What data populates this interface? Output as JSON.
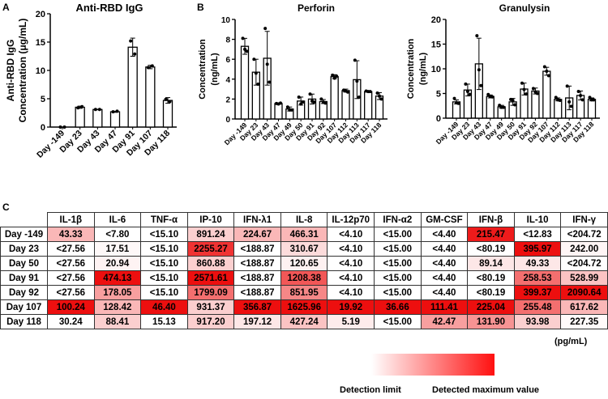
{
  "panels": {
    "a": "A",
    "b": "B",
    "c": "C"
  },
  "chart_data": [
    {
      "type": "bar",
      "title": "Anti-RBD IgG",
      "ylabel": [
        "Anti-RBD IgG",
        "Concentration (μg/mL)"
      ],
      "xlabel": "",
      "ylim": [
        0,
        20
      ],
      "yticks": [
        0,
        5,
        10,
        15,
        20
      ],
      "categories": [
        "Day -149",
        "Day 23",
        "Day 43",
        "Day 47",
        "Day 91",
        "Day 107",
        "Day 118"
      ],
      "values": [
        0,
        3.5,
        3.1,
        2.7,
        14.1,
        10.6,
        4.7
      ],
      "errors": [
        0,
        0.2,
        0.05,
        0.1,
        1.6,
        0.3,
        0.5
      ],
      "points": [
        [
          0,
          0
        ],
        [
          3.4,
          3.6
        ],
        [
          3.1,
          3.1
        ],
        [
          2.7,
          2.8
        ],
        [
          15.2,
          12.9
        ],
        [
          10.5,
          10.8
        ],
        [
          4.9,
          4.5
        ]
      ]
    },
    {
      "type": "bar",
      "title": "Perforin",
      "ylabel": [
        "Concentration",
        "(ng/mL)"
      ],
      "xlabel": "",
      "ylim": [
        0,
        10
      ],
      "yticks": [
        0,
        2,
        4,
        6,
        8,
        10
      ],
      "categories": [
        "Day -149",
        "Day 23",
        "Day 43",
        "Day 47",
        "Day 49",
        "Day 50",
        "Day 91",
        "Day 92",
        "Day 107",
        "Day 112",
        "Day 113",
        "Day 117",
        "Day 118"
      ],
      "values": [
        7.3,
        4.7,
        6.1,
        1.55,
        1.0,
        1.8,
        2.0,
        1.75,
        4.25,
        2.85,
        3.95,
        2.75,
        2.3
      ],
      "errors": [
        0.8,
        1.3,
        2.7,
        0.05,
        0.2,
        0.4,
        0.5,
        0.2,
        0.2,
        0.15,
        1.9,
        0.05,
        0.35
      ],
      "points": [
        [
          8.1,
          7.0,
          6.8
        ],
        [
          6.0,
          4.6,
          3.5
        ],
        [
          9.1,
          5.5,
          3.7
        ],
        [
          1.55,
          1.5,
          1.6
        ],
        [
          1.2,
          0.9,
          0.9
        ],
        [
          2.2,
          1.5,
          1.7
        ],
        [
          2.5,
          1.8,
          1.7
        ],
        [
          2.0,
          1.7,
          1.6
        ],
        [
          4.4,
          4.1,
          4.3
        ],
        [
          2.9,
          2.8,
          2.7
        ],
        [
          5.9,
          3.8,
          2.2
        ],
        [
          2.8,
          2.75,
          2.75
        ],
        [
          2.6,
          2.3,
          2.0
        ]
      ]
    },
    {
      "type": "bar",
      "title": "Granulysin",
      "ylabel": [
        "Concentration",
        "(ng/mL)"
      ],
      "xlabel": "",
      "ylim": [
        0,
        20
      ],
      "yticks": [
        0,
        5,
        10,
        15,
        20
      ],
      "categories": [
        "Day -149",
        "Day 23",
        "Day 43",
        "Day 47",
        "Day 49",
        "Day 50",
        "Day 91",
        "Day 92",
        "Day 107",
        "Day 112",
        "Day 113",
        "Day 117",
        "Day 118"
      ],
      "values": [
        3.3,
        5.7,
        11.0,
        4.4,
        2.3,
        3.3,
        5.9,
        5.5,
        9.5,
        3.8,
        4.1,
        4.6,
        3.8
      ],
      "errors": [
        0.4,
        1.2,
        5.2,
        0.3,
        0.3,
        0.7,
        1.2,
        0.6,
        0.8,
        0.3,
        2.4,
        0.9,
        0.3
      ],
      "points": [
        [
          4.0,
          3.1,
          3.0
        ],
        [
          6.9,
          5.4,
          4.8
        ],
        [
          16.7,
          9.8,
          6.6
        ],
        [
          4.8,
          4.4,
          4.3
        ],
        [
          2.6,
          2.2,
          2.2
        ],
        [
          3.8,
          3.6,
          2.7
        ],
        [
          7.1,
          5.8,
          4.9
        ],
        [
          6.0,
          5.3,
          5.0
        ],
        [
          10.4,
          9.5,
          8.6
        ],
        [
          4.2,
          3.7,
          3.6
        ],
        [
          6.5,
          3.3,
          2.4
        ],
        [
          5.4,
          4.6,
          3.7
        ],
        [
          4.2,
          3.7,
          3.7
        ]
      ]
    },
    {
      "type": "heatmap",
      "columns": [
        "IL-1β",
        "IL-6",
        "TNF-α",
        "IP-10",
        "IFN-λ1",
        "IL-8",
        "IL-12p70",
        "IFN-α2",
        "GM-CSF",
        "IFN-β",
        "IL-10",
        "IFN-γ"
      ],
      "rows": [
        {
          "label": "Day -149",
          "cells": [
            "43.33",
            "<7.80",
            "<15.10",
            "891.24",
            "224.67",
            "466.31",
            "<4.10",
            "<15.00",
            "<4.40",
            "215.47",
            "<12.83",
            "<204.72"
          ],
          "intensity": [
            0.3,
            0,
            0,
            0.2,
            0.3,
            0.3,
            0,
            0,
            0,
            0.95,
            0,
            0
          ]
        },
        {
          "label": "Day 23",
          "cells": [
            "<27.56",
            "17.51",
            "<15.10",
            "2255.27",
            "<188.87",
            "310.67",
            "<4.10",
            "<15.00",
            "<4.40",
            "<80.19",
            "395.97",
            "242.00"
          ],
          "intensity": [
            0,
            0.03,
            0,
            0.85,
            0,
            0.15,
            0,
            0,
            0,
            0,
            1,
            0.04
          ]
        },
        {
          "label": "Day 50",
          "cells": [
            "<27.56",
            "20.94",
            "<15.10",
            "860.88",
            "<188.87",
            "120.65",
            "<4.10",
            "<15.00",
            "<4.40",
            "89.14",
            "49.33",
            "<204.72"
          ],
          "intensity": [
            0,
            0.05,
            0,
            0.2,
            0,
            0.06,
            0,
            0,
            0,
            0.1,
            0.1,
            0
          ]
        },
        {
          "label": "Day 91",
          "cells": [
            "<27.56",
            "474.13",
            "<15.10",
            "2571.61",
            "<188.87",
            "1208.38",
            "<4.10",
            "<15.00",
            "<4.40",
            "<80.19",
            "258.53",
            "528.99"
          ],
          "intensity": [
            0,
            1,
            0,
            1,
            0,
            0.7,
            0,
            0,
            0,
            0,
            0.6,
            0.25
          ]
        },
        {
          "label": "Day 92",
          "cells": [
            "<27.56",
            "178.05",
            "<15.10",
            "1799.09",
            "<188.87",
            "851.95",
            "<4.10",
            "<15.00",
            "<4.40",
            "<80.19",
            "399.37",
            "2090.64"
          ],
          "intensity": [
            0,
            0.4,
            0,
            0.6,
            0,
            0.5,
            0,
            0,
            0,
            0,
            1,
            1
          ]
        },
        {
          "label": "Day 107",
          "cells": [
            "100.24",
            "128.42",
            "46.40",
            "931.37",
            "356.87",
            "1625.96",
            "19.92",
            "36.66",
            "111.41",
            "225.04",
            "255.48",
            "617.62"
          ],
          "intensity": [
            1,
            0.3,
            1,
            0.2,
            1,
            1,
            1,
            1,
            1,
            1,
            0.6,
            0.3
          ]
        },
        {
          "label": "Day 118",
          "cells": [
            "30.24",
            "88.41",
            "15.13",
            "917.20",
            "197.12",
            "427.24",
            "5.19",
            "<15.00",
            "42.47",
            "131.90",
            "93.98",
            "227.35"
          ],
          "intensity": [
            0,
            0.2,
            0,
            0.2,
            0.1,
            0.25,
            0.08,
            0,
            0.4,
            0.45,
            0.2,
            0.02
          ]
        }
      ]
    }
  ],
  "legend": {
    "unit": "(pg/mL)",
    "low_label": "Detection limit",
    "high_label": "Detected maximum value",
    "low_color": "#ffffff",
    "high_color": "#ff1010"
  }
}
